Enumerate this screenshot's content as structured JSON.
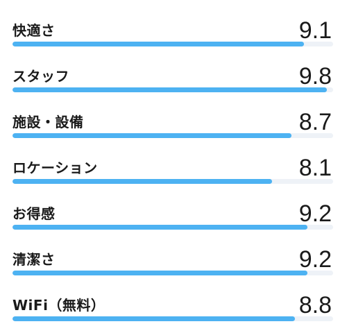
{
  "colors": {
    "fill": "#4db2f2",
    "track": "#eef2f7",
    "text": "#1a1a1a"
  },
  "scale_max": 10,
  "ratings": [
    {
      "label": "快適さ",
      "score": "9.1",
      "fraction": 0.91
    },
    {
      "label": "スタッフ",
      "score": "9.8",
      "fraction": 0.98
    },
    {
      "label": "施設・設備",
      "score": "8.7",
      "fraction": 0.87
    },
    {
      "label": "ロケーション",
      "score": "8.1",
      "fraction": 0.81
    },
    {
      "label": "お得感",
      "score": "9.2",
      "fraction": 0.92
    },
    {
      "label": "清潔さ",
      "score": "9.2",
      "fraction": 0.92
    },
    {
      "label": "WiFi（無料）",
      "score": "8.8",
      "fraction": 0.88
    }
  ]
}
